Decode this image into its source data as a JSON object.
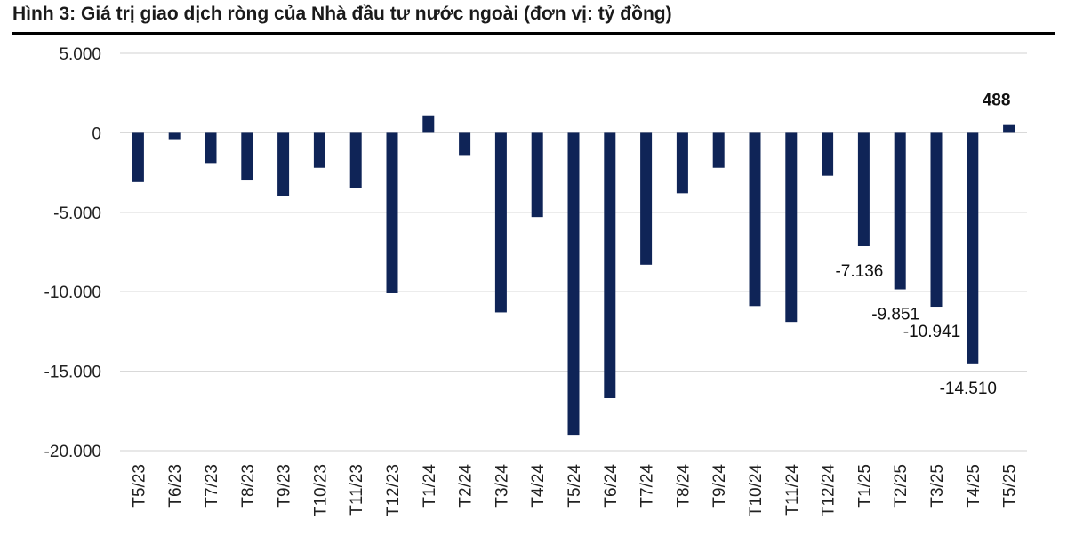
{
  "title": "Hình 3: Giá trị giao dịch ròng của Nhà đầu tư nước ngoài (đơn vị: tỷ đồng)",
  "chart_data": {
    "type": "bar",
    "categories": [
      "T5/23",
      "T6/23",
      "T7/23",
      "T8/23",
      "T9/23",
      "T10/23",
      "T11/23",
      "T12/23",
      "T1/24",
      "T2/24",
      "T3/24",
      "T4/24",
      "T5/24",
      "T6/24",
      "T7/24",
      "T8/24",
      "T9/24",
      "T10/24",
      "T11/24",
      "T12/24",
      "T1/25",
      "T2/25",
      "T3/25",
      "T4/25",
      "T5/25"
    ],
    "values": [
      -3100,
      -400,
      -1900,
      -3000,
      -4000,
      -2200,
      -3500,
      -10100,
      1100,
      -1400,
      -11300,
      -5300,
      -19000,
      -16700,
      -8300,
      -3800,
      -2200,
      -10900,
      -11900,
      -2700,
      -7136,
      -9851,
      -10941,
      -14510,
      488
    ],
    "ylim": [
      -20000,
      5000
    ],
    "yticks": [
      5000,
      0,
      -5000,
      -10000,
      -15000,
      -20000
    ],
    "ytick_labels": [
      "5.000",
      "0",
      "-5.000",
      "-10.000",
      "-15.000",
      "-20.000"
    ],
    "data_labels": [
      {
        "index": 20,
        "text": "-7.136"
      },
      {
        "index": 21,
        "text": "-9.851"
      },
      {
        "index": 22,
        "text": "-10.941"
      },
      {
        "index": 23,
        "text": "-14.510"
      },
      {
        "index": 24,
        "text": "488",
        "bold": true
      }
    ],
    "bar_color": "#0f2457",
    "grid": true,
    "grid_color": "#d9d9d9"
  }
}
